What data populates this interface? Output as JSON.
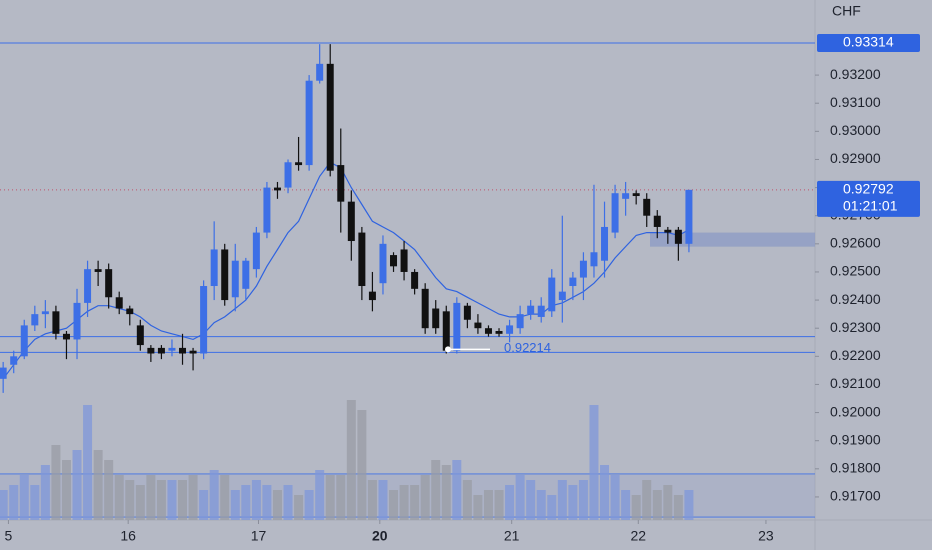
{
  "chart_data": {
    "type": "candlestick",
    "currency": "CHF",
    "ylim": [
      0.91618,
      0.93467
    ],
    "yticks": [
      {
        "value": 0.917,
        "label": "0.91700"
      },
      {
        "value": 0.918,
        "label": "0.91800"
      },
      {
        "value": 0.919,
        "label": "0.91900"
      },
      {
        "value": 0.92,
        "label": "0.92000"
      },
      {
        "value": 0.921,
        "label": "0.92100"
      },
      {
        "value": 0.922,
        "label": "0.92200"
      },
      {
        "value": 0.923,
        "label": "0.92300"
      },
      {
        "value": 0.924,
        "label": "0.92400"
      },
      {
        "value": 0.925,
        "label": "0.92500"
      },
      {
        "value": 0.926,
        "label": "0.92600"
      },
      {
        "value": 0.927,
        "label": "0.92700"
      },
      {
        "value": 0.928,
        "label": "0.92800"
      },
      {
        "value": 0.929,
        "label": "0.92900"
      },
      {
        "value": 0.93,
        "label": "0.93000"
      },
      {
        "value": 0.931,
        "label": "0.93100"
      },
      {
        "value": 0.932,
        "label": "0.93200"
      }
    ],
    "xlim": [
      -0.3,
      76.95
    ],
    "xticks": [
      {
        "value": 0.5,
        "label": "5"
      },
      {
        "value": 11.85,
        "label": "16"
      },
      {
        "value": 24.2,
        "label": "17"
      },
      {
        "value": 35.7,
        "label": "20"
      },
      {
        "value": 48.2,
        "label": "21"
      },
      {
        "value": 60.2,
        "label": "22"
      },
      {
        "value": 72.3,
        "label": "23"
      }
    ],
    "up_color": "#3d6fe6",
    "down_color": "#111111",
    "open": [
      0.9212,
      0.9217,
      0.922,
      0.9231,
      0.9235,
      0.9236,
      0.9228,
      0.9226,
      0.9239,
      0.9251,
      0.9251,
      0.9241,
      0.9237,
      0.9231,
      0.9223,
      0.9223,
      0.9222,
      0.9223,
      0.9222,
      0.9221,
      0.9245,
      0.9258,
      0.9241,
      0.9244,
      0.9251,
      0.9264,
      0.928,
      0.928,
      0.9289,
      0.9288,
      0.9318,
      0.9324,
      0.9288,
      0.9275,
      0.9264,
      0.9243,
      0.9246,
      0.9256,
      0.9258,
      0.925,
      0.9244,
      0.9237,
      0.9236,
      0.9222,
      0.9238,
      0.9232,
      0.923,
      0.9229,
      0.9228,
      0.923,
      0.9235,
      0.9234,
      0.9236,
      0.924,
      0.9245,
      0.9248,
      0.9252,
      0.9254,
      0.9264,
      0.9276,
      0.9278,
      0.9276,
      0.927,
      0.9265,
      0.9265,
      0.926
    ],
    "high": [
      0.9218,
      0.9222,
      0.9233,
      0.9238,
      0.924,
      0.9238,
      0.9229,
      0.9244,
      0.9254,
      0.9254,
      0.9253,
      0.9243,
      0.9238,
      0.9233,
      0.9224,
      0.9224,
      0.9226,
      0.9228,
      0.9223,
      0.9247,
      0.9268,
      0.926,
      0.926,
      0.9255,
      0.9266,
      0.9282,
      0.9282,
      0.929,
      0.9298,
      0.932,
      0.9331,
      0.9331,
      0.9301,
      0.9279,
      0.9266,
      0.925,
      0.9263,
      0.9257,
      0.9261,
      0.9251,
      0.9246,
      0.924,
      0.9238,
      0.9241,
      0.9239,
      0.9235,
      0.9231,
      0.923,
      0.9233,
      0.9238,
      0.924,
      0.9241,
      0.9251,
      0.927,
      0.925,
      0.9257,
      0.9281,
      0.9275,
      0.9281,
      0.9282,
      0.9279,
      0.9278,
      0.9272,
      0.9266,
      0.9266,
      0.92792
    ],
    "low": [
      0.9207,
      0.9214,
      0.9219,
      0.9229,
      0.923,
      0.9226,
      0.9219,
      0.9219,
      0.9234,
      0.9245,
      0.9237,
      0.9235,
      0.9231,
      0.9222,
      0.9218,
      0.9219,
      0.922,
      0.9217,
      0.9215,
      0.9219,
      0.924,
      0.9238,
      0.9236,
      0.924,
      0.9248,
      0.9262,
      0.9276,
      0.9278,
      0.9286,
      0.9286,
      0.9317,
      0.9284,
      0.9264,
      0.9254,
      0.924,
      0.9236,
      0.9242,
      0.925,
      0.9247,
      0.9242,
      0.9228,
      0.9228,
      0.9221,
      0.9221,
      0.923,
      0.9228,
      0.9227,
      0.9227,
      0.9225,
      0.9228,
      0.9233,
      0.9232,
      0.9234,
      0.9232,
      0.924,
      0.924,
      0.9248,
      0.9248,
      0.9262,
      0.927,
      0.9274,
      0.9266,
      0.9262,
      0.926,
      0.9254,
      0.9257
    ],
    "close": [
      0.9216,
      0.922,
      0.9231,
      0.9235,
      0.9236,
      0.9228,
      0.9226,
      0.9239,
      0.9251,
      0.925,
      0.9241,
      0.9237,
      0.9235,
      0.9224,
      0.9221,
      0.9221,
      0.9223,
      0.9221,
      0.9221,
      0.9245,
      0.9258,
      0.924,
      0.9254,
      0.9254,
      0.9264,
      0.928,
      0.9279,
      0.9289,
      0.9288,
      0.9318,
      0.9324,
      0.9286,
      0.9275,
      0.9261,
      0.9245,
      0.924,
      0.926,
      0.9252,
      0.925,
      0.9244,
      0.923,
      0.923,
      0.9222,
      0.9239,
      0.9233,
      0.923,
      0.9228,
      0.9228,
      0.9231,
      0.9235,
      0.9238,
      0.9238,
      0.9248,
      0.9243,
      0.9248,
      0.9254,
      0.9257,
      0.9266,
      0.9278,
      0.9278,
      0.9277,
      0.927,
      0.9266,
      0.9264,
      0.926,
      0.92792
    ],
    "ma": [
      0.9212,
      0.9217,
      0.9222,
      0.9226,
      0.9228,
      0.9229,
      0.923,
      0.9233,
      0.9236,
      0.9238,
      0.9238,
      0.9237,
      0.9236,
      0.9234,
      0.9231,
      0.9229,
      0.9228,
      0.9227,
      0.9226,
      0.9228,
      0.9232,
      0.9234,
      0.9237,
      0.924,
      0.9245,
      0.9252,
      0.9258,
      0.9264,
      0.9268,
      0.9276,
      0.9284,
      0.9289,
      0.9287,
      0.928,
      0.9274,
      0.9268,
      0.9266,
      0.9264,
      0.9261,
      0.9258,
      0.9253,
      0.9248,
      0.9244,
      0.9243,
      0.9241,
      0.9239,
      0.9237,
      0.9235,
      0.9234,
      0.9234,
      0.9235,
      0.9235,
      0.9238,
      0.9239,
      0.9241,
      0.9243,
      0.9246,
      0.925,
      0.9255,
      0.9259,
      0.9263,
      0.9264,
      0.9264,
      0.9264,
      0.9263,
      0.9265
    ],
    "ma_color": "#2f63e0",
    "volume": [
      30,
      35,
      45,
      35,
      55,
      75,
      60,
      70,
      115,
      70,
      60,
      45,
      40,
      35,
      45,
      40,
      40,
      40,
      45,
      30,
      50,
      45,
      30,
      35,
      40,
      35,
      30,
      35,
      25,
      30,
      50,
      45,
      45,
      120,
      110,
      40,
      40,
      30,
      35,
      35,
      45,
      60,
      55,
      60,
      40,
      25,
      30,
      30,
      35,
      45,
      40,
      30,
      25,
      40,
      35,
      40,
      115,
      55,
      45,
      30,
      25,
      40,
      30,
      35,
      25,
      30
    ],
    "vlim": [
      0,
      130
    ],
    "levels": [
      0.93314,
      0.9227,
      0.92214
    ],
    "level_color": "#3d6fe6",
    "zone": [
      0.9259,
      0.9264
    ],
    "annotation": 0.92214,
    "last_price": 0.92792,
    "countdown": "01:21:01"
  }
}
